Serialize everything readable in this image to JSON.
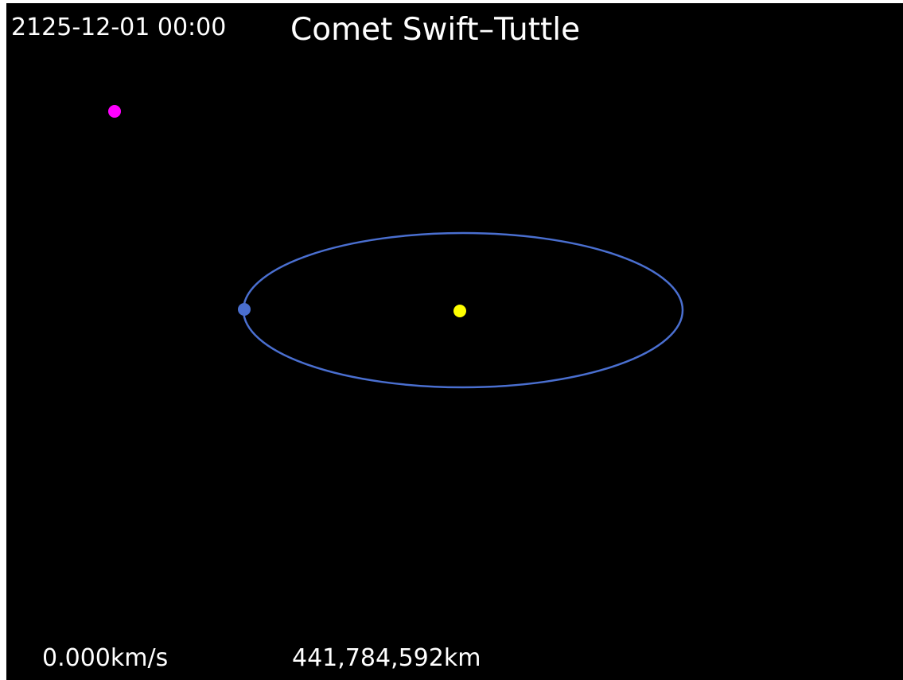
{
  "header": {
    "date": "2125-12-01 00:00",
    "title": "Comet Swift–Tuttle"
  },
  "footer": {
    "speed": "0.000km/s",
    "distance": "441,784,592km"
  }
}
